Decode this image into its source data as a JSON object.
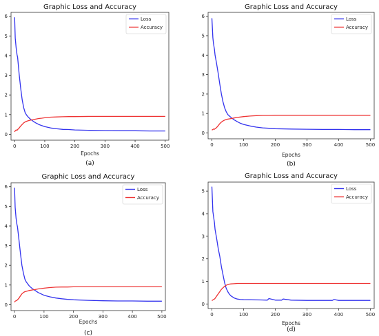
{
  "figure": {
    "caption_letters": [
      "(a)",
      "(b)",
      "(c)",
      "(d)"
    ]
  },
  "chart_data": [
    {
      "type": "line",
      "panel": "(a)",
      "title": "Graphic Loss and Accuracy",
      "xlabel": "Epochs",
      "ylabel": "",
      "xlim": [
        -12,
        512
      ],
      "ylim": [
        -0.3,
        6.2
      ],
      "xticks": [
        0,
        100,
        200,
        300,
        400,
        500
      ],
      "yticks": [
        0,
        1,
        2,
        3,
        4,
        5,
        6
      ],
      "grid": false,
      "legend": "top-right",
      "x": [
        0,
        2,
        5,
        8,
        10,
        15,
        20,
        25,
        30,
        35,
        40,
        45,
        50,
        60,
        70,
        80,
        90,
        100,
        120,
        140,
        160,
        180,
        200,
        250,
        300,
        350,
        400,
        450,
        500
      ],
      "series": [
        {
          "name": "Loss",
          "color": "#3333ee",
          "values": [
            5.95,
            4.9,
            4.4,
            4.05,
            3.9,
            3.05,
            2.35,
            1.75,
            1.35,
            1.1,
            0.97,
            0.88,
            0.8,
            0.68,
            0.58,
            0.5,
            0.44,
            0.39,
            0.32,
            0.28,
            0.25,
            0.24,
            0.22,
            0.2,
            0.19,
            0.18,
            0.18,
            0.17,
            0.17
          ]
        },
        {
          "name": "Accuracy",
          "color": "#ee3333",
          "values": [
            0.12,
            0.18,
            0.22,
            0.2,
            0.24,
            0.32,
            0.42,
            0.5,
            0.58,
            0.63,
            0.66,
            0.69,
            0.71,
            0.74,
            0.77,
            0.8,
            0.82,
            0.84,
            0.87,
            0.88,
            0.89,
            0.9,
            0.9,
            0.91,
            0.91,
            0.91,
            0.91,
            0.91,
            0.91
          ]
        }
      ]
    },
    {
      "type": "line",
      "panel": "(b)",
      "title": "Graphic Loss and Accuracy",
      "xlabel": "Epochs",
      "ylabel": "",
      "xlim": [
        -12,
        512
      ],
      "ylim": [
        -0.3,
        6.2
      ],
      "xticks": [
        0,
        100,
        200,
        300,
        400,
        500
      ],
      "yticks": [
        0,
        1,
        2,
        3,
        4,
        5,
        6
      ],
      "grid": false,
      "legend": "top-right",
      "x": [
        0,
        3,
        5,
        8,
        10,
        15,
        20,
        25,
        30,
        35,
        40,
        45,
        50,
        60,
        70,
        80,
        90,
        100,
        120,
        140,
        160,
        180,
        200,
        250,
        300,
        350,
        400,
        450,
        500
      ],
      "series": [
        {
          "name": "Loss",
          "color": "#3333ee",
          "values": [
            5.9,
            4.9,
            4.6,
            4.3,
            4.0,
            3.55,
            3.05,
            2.5,
            2.0,
            1.6,
            1.3,
            1.1,
            0.95,
            0.8,
            0.68,
            0.58,
            0.5,
            0.44,
            0.36,
            0.3,
            0.26,
            0.24,
            0.22,
            0.2,
            0.19,
            0.18,
            0.18,
            0.17,
            0.17
          ]
        },
        {
          "name": "Accuracy",
          "color": "#ee3333",
          "values": [
            0.15,
            0.18,
            0.2,
            0.19,
            0.22,
            0.28,
            0.38,
            0.48,
            0.56,
            0.62,
            0.66,
            0.69,
            0.71,
            0.74,
            0.77,
            0.8,
            0.82,
            0.84,
            0.87,
            0.89,
            0.9,
            0.9,
            0.91,
            0.91,
            0.91,
            0.91,
            0.91,
            0.91,
            0.91
          ]
        }
      ]
    },
    {
      "type": "line",
      "panel": "(c)",
      "title": "Graphic Loss and Accuracy",
      "xlabel": "Epochs",
      "ylabel": "",
      "xlim": [
        -12,
        512
      ],
      "ylim": [
        -0.3,
        6.2
      ],
      "xticks": [
        0,
        100,
        200,
        300,
        400,
        500
      ],
      "yticks": [
        0,
        1,
        2,
        3,
        4,
        5,
        6
      ],
      "grid": false,
      "legend": "top-right",
      "x": [
        0,
        2,
        5,
        8,
        10,
        15,
        20,
        25,
        30,
        35,
        40,
        45,
        50,
        60,
        70,
        80,
        90,
        100,
        120,
        140,
        160,
        180,
        200,
        250,
        300,
        350,
        400,
        450,
        500
      ],
      "series": [
        {
          "name": "Loss",
          "color": "#3333ee",
          "values": [
            5.95,
            4.95,
            4.4,
            4.1,
            3.95,
            3.3,
            2.6,
            2.0,
            1.6,
            1.3,
            1.15,
            1.05,
            0.95,
            0.82,
            0.72,
            0.62,
            0.55,
            0.48,
            0.4,
            0.34,
            0.3,
            0.27,
            0.25,
            0.22,
            0.2,
            0.19,
            0.19,
            0.18,
            0.18
          ]
        },
        {
          "name": "Accuracy",
          "color": "#ee3333",
          "values": [
            0.12,
            0.18,
            0.2,
            0.22,
            0.25,
            0.33,
            0.45,
            0.55,
            0.62,
            0.66,
            0.68,
            0.7,
            0.72,
            0.75,
            0.77,
            0.8,
            0.82,
            0.84,
            0.87,
            0.89,
            0.9,
            0.9,
            0.91,
            0.91,
            0.91,
            0.91,
            0.91,
            0.91,
            0.91
          ]
        }
      ]
    },
    {
      "type": "line",
      "panel": "(d)",
      "title": "Graphic Loss and Accuracy",
      "xlabel": "Epochs",
      "ylabel": "",
      "xlim": [
        -12,
        512
      ],
      "ylim": [
        -0.2,
        5.4
      ],
      "xticks": [
        0,
        100,
        200,
        300,
        400,
        500
      ],
      "yticks": [
        0,
        1,
        2,
        3,
        4,
        5
      ],
      "grid": false,
      "legend": "top-right",
      "x": [
        0,
        3,
        5,
        8,
        10,
        15,
        20,
        25,
        30,
        35,
        40,
        45,
        50,
        55,
        60,
        70,
        80,
        90,
        100,
        150,
        175,
        180,
        200,
        220,
        225,
        250,
        300,
        350,
        380,
        385,
        400,
        450,
        500
      ],
      "series": [
        {
          "name": "Loss",
          "color": "#3333ee",
          "values": [
            5.2,
            4.1,
            3.9,
            3.6,
            3.3,
            2.9,
            2.45,
            2.1,
            1.65,
            1.3,
            0.95,
            0.7,
            0.55,
            0.44,
            0.36,
            0.27,
            0.22,
            0.2,
            0.19,
            0.18,
            0.17,
            0.24,
            0.17,
            0.17,
            0.22,
            0.17,
            0.16,
            0.16,
            0.16,
            0.2,
            0.16,
            0.16,
            0.16
          ]
        },
        {
          "name": "Accuracy",
          "color": "#ee3333",
          "values": [
            0.15,
            0.18,
            0.2,
            0.22,
            0.25,
            0.35,
            0.45,
            0.55,
            0.65,
            0.72,
            0.78,
            0.83,
            0.86,
            0.88,
            0.89,
            0.9,
            0.91,
            0.91,
            0.91,
            0.91,
            0.91,
            0.91,
            0.91,
            0.91,
            0.91,
            0.91,
            0.91,
            0.91,
            0.91,
            0.91,
            0.91,
            0.91,
            0.91
          ]
        }
      ]
    }
  ]
}
